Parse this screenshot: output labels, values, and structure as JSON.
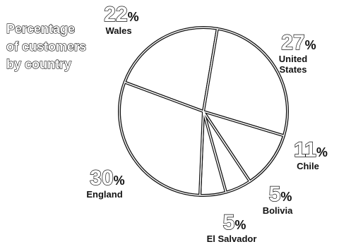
{
  "chart_data": {
    "type": "pie",
    "title": "Percentage of customers by country",
    "title_lines": [
      "Percentage",
      "of customers",
      "by country"
    ],
    "slices": [
      {
        "label": "Wales",
        "value": 22,
        "value_label": "22%"
      },
      {
        "label": "United States",
        "value": 27,
        "value_label": "27%"
      },
      {
        "label": "Chile",
        "value": 11,
        "value_label": "11%"
      },
      {
        "label": "Bolivia",
        "value": 5,
        "value_label": "5%"
      },
      {
        "label": "El Salvador",
        "value": 5,
        "value_label": "5%"
      },
      {
        "label": "England",
        "value": 30,
        "value_label": "30%"
      }
    ],
    "colors": {
      "fill": "#ffffff",
      "stroke": "#111111",
      "text": "#111111"
    }
  }
}
